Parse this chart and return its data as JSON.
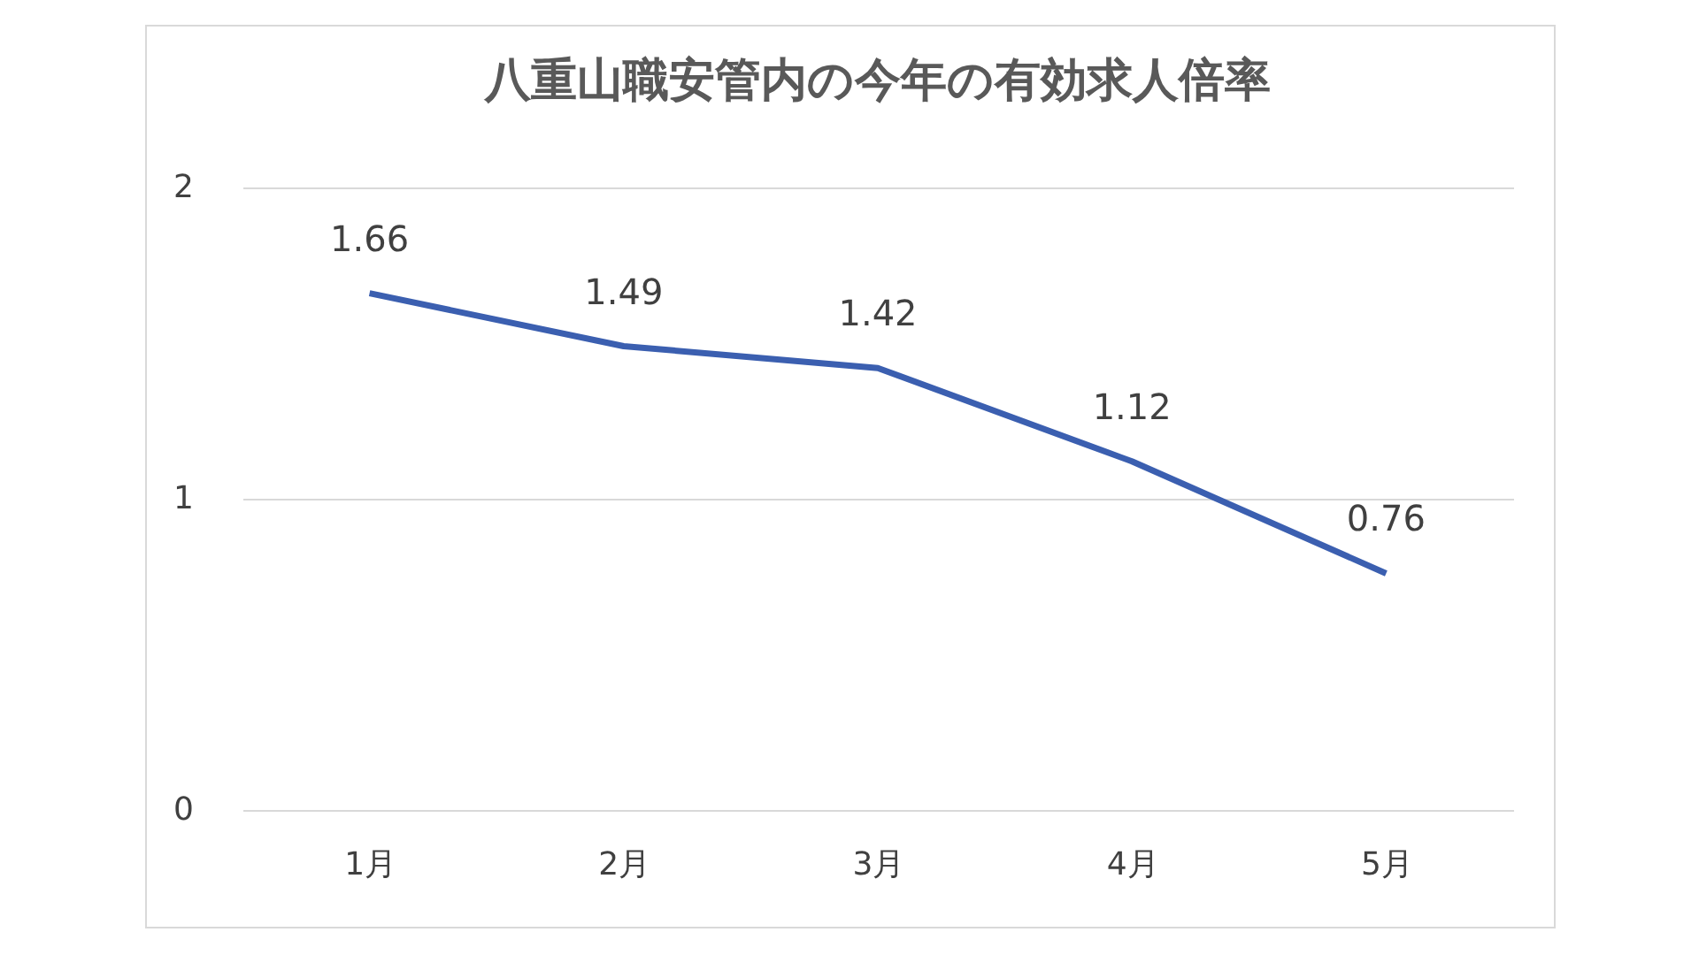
{
  "chart_data": {
    "type": "line",
    "title": "八重山職安管内の今年の有効求人倍率",
    "categories": [
      "1月",
      "2月",
      "3月",
      "4月",
      "5月"
    ],
    "series": [
      {
        "color": "#3b5fb0",
        "values": [
          1.66,
          1.49,
          1.42,
          1.12,
          0.76
        ]
      }
    ],
    "ylim": [
      0,
      2
    ],
    "yticks": [
      0,
      1,
      2
    ],
    "grid": "y",
    "data_labels": true,
    "legend": false,
    "marker": "none",
    "line_style": "solid"
  }
}
